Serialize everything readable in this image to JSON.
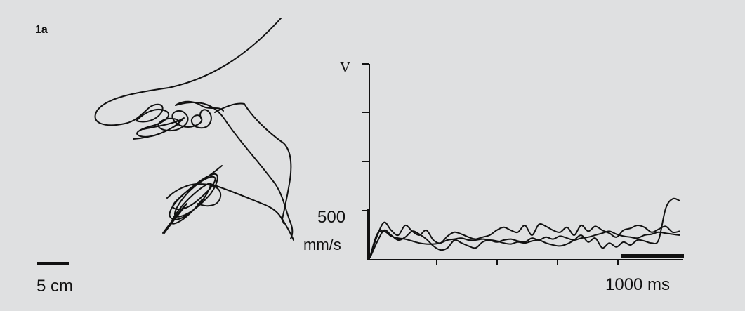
{
  "figure": {
    "panel_label": "1a",
    "left_scale_bar": {
      "label": "5 cm"
    },
    "right_scale_bar": {
      "label": "1000 ms"
    },
    "velocity_axis": {
      "label": "V",
      "tick_value_label": "500",
      "unit_label": "mm/s"
    },
    "colors": {
      "background": "#dfe0e1",
      "ink": "#111111"
    }
  },
  "chart_data": {
    "type": "line",
    "title": "",
    "xlabel": "",
    "ylabel": "V",
    "y_unit": "mm/s",
    "y_labeled_tick": 500,
    "x_scale_bar_ms": 1000,
    "grid": false,
    "series": [
      {
        "values": [
          20,
          180,
          300,
          250,
          200,
          230,
          290,
          260,
          210,
          140,
          100,
          120,
          200,
          170,
          140,
          120,
          180,
          200,
          190,
          170,
          160,
          180,
          170,
          190,
          200,
          170,
          150,
          140,
          160,
          200,
          250,
          180,
          220,
          120,
          170,
          130,
          180,
          150,
          200,
          190,
          170,
          200,
          520,
          620,
          600
        ]
      },
      {
        "values": [
          20,
          240,
          380,
          300,
          250,
          350,
          290,
          250,
          300,
          200,
          170,
          240,
          280,
          260,
          230,
          210,
          230,
          250,
          300,
          330,
          300,
          280,
          350,
          250,
          360,
          340,
          300,
          280,
          330,
          250,
          350,
          290,
          340,
          300,
          270,
          230,
          300,
          320,
          350,
          330,
          280,
          310,
          340,
          280,
          290
        ]
      },
      {
        "values": [
          30,
          260,
          290,
          240,
          220,
          210,
          190,
          170,
          160,
          160,
          170,
          200,
          210,
          220,
          200,
          200,
          210,
          200,
          180,
          200,
          210,
          190,
          180,
          220,
          200,
          230,
          210,
          240,
          220,
          200,
          220,
          230,
          250,
          270,
          290,
          260,
          240,
          230,
          220,
          250,
          260,
          280,
          270,
          260,
          250
        ]
      }
    ]
  }
}
